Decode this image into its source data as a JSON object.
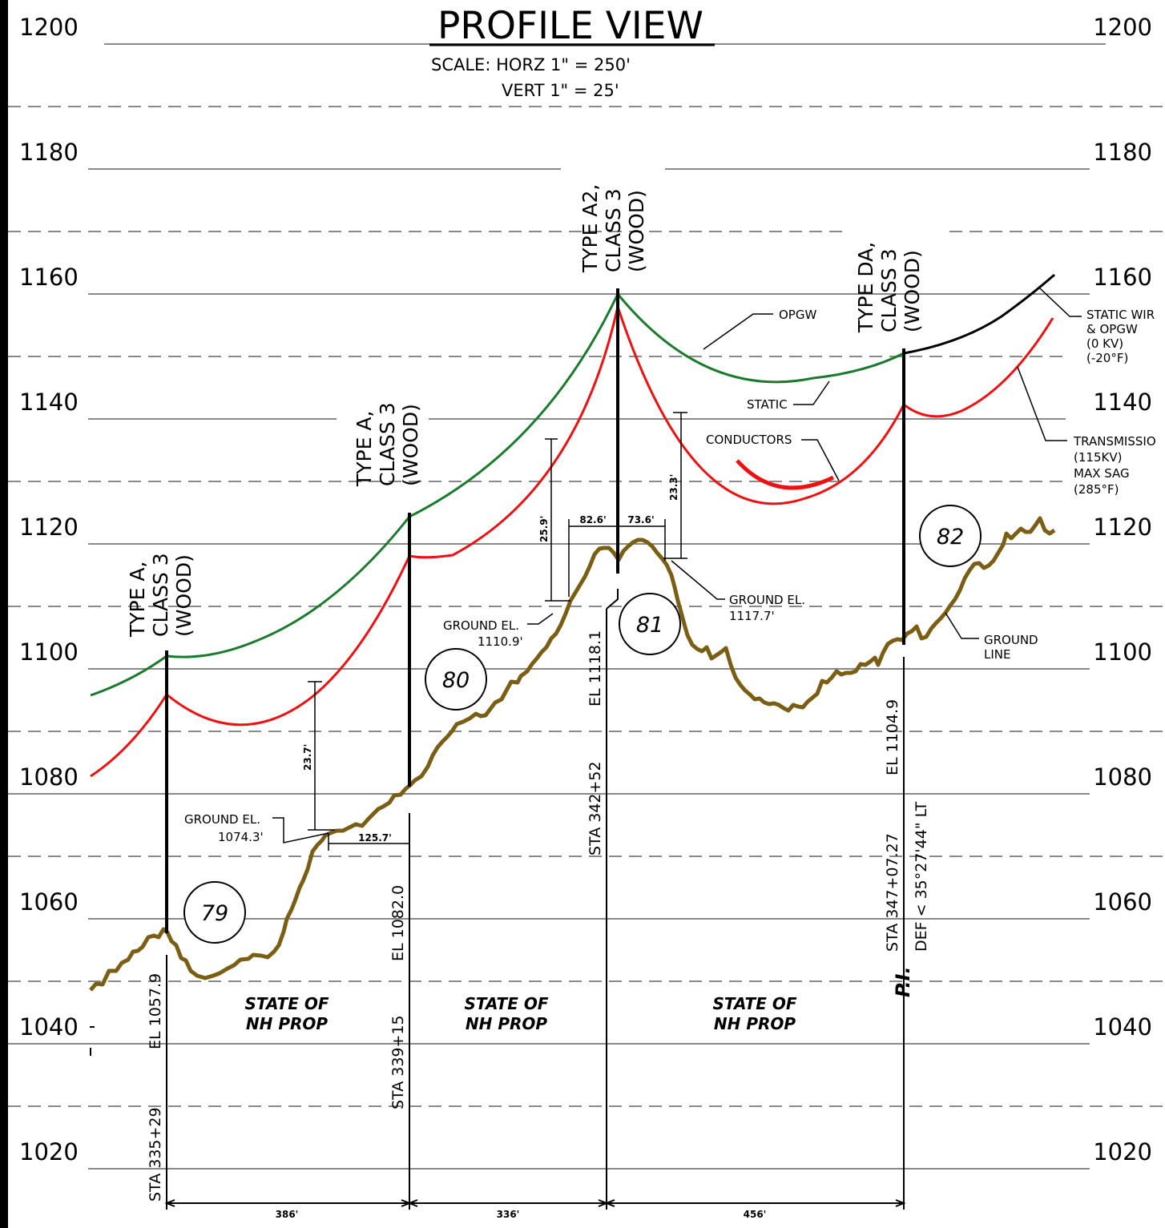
{
  "title": "PROFILE VIEW",
  "scale": {
    "horz": "SCALE:  HORZ  1\"  =  250'",
    "vert": "VERT  1\"  =  25'"
  },
  "elevations": [
    "1200",
    "1180",
    "1160",
    "1140",
    "1120",
    "1100",
    "1080",
    "1060",
    "1040",
    "1020"
  ],
  "poles": [
    {
      "number": "79",
      "type": [
        "TYPE  A,",
        "CLASS  3",
        "(WOOD)"
      ],
      "station": "STA  335+29",
      "elevation": "EL  1057.9"
    },
    {
      "number": "80",
      "type": [
        "TYPE  A,",
        "CLASS  3",
        "(WOOD)"
      ],
      "station": "STA  339+15",
      "elevation": "EL  1082.0"
    },
    {
      "number": "81",
      "type": [
        "TYPE  A2,",
        "CLASS  3",
        "(WOOD)"
      ],
      "station": "STA  342+52",
      "elevation": "EL  1118.1"
    },
    {
      "number": "82",
      "type": [
        "TYPE  DA,",
        "CLASS  3",
        "(WOOD)"
      ],
      "station": "STA  347+07.27",
      "elevation": "EL  1104.9",
      "deflection": "DEF  <  35°27'44\"  LT",
      "pi": "P.I."
    }
  ],
  "wires": {
    "opgw": "OPGW",
    "static": "STATIC",
    "conductors": "CONDUCTORS",
    "static_note": [
      "STATIC  WIR",
      "& OPGW",
      "(0  KV)",
      "(-20°F)"
    ],
    "transmission_note": [
      "TRANSMISSIO",
      "(115KV)",
      "MAX  SAG",
      "(285°F)"
    ]
  },
  "ground": {
    "ground_line": [
      "GROUND",
      "LINE"
    ],
    "g1": [
      "GROUND  EL.",
      "1074.3'"
    ],
    "g2": [
      "GROUND  EL.",
      "1110.9'"
    ],
    "g3": [
      "GROUND  EL.",
      "1117.7'"
    ]
  },
  "clearances": [
    "23.7'",
    "25.9'",
    "23.3'"
  ],
  "offsets": [
    "125.7'",
    "82.6'",
    "73.6'"
  ],
  "spans": [
    "386'",
    "336'",
    "456'"
  ],
  "property": [
    [
      "STATE  OF",
      "NH  PROP"
    ],
    [
      "STATE  OF",
      "NH  PROP"
    ],
    [
      "STATE  OF",
      "NH  PROP"
    ]
  ],
  "colors": {
    "opgw": "#1a7a2e",
    "conductor": "#ee1111",
    "ground": "#7a5e14",
    "static_ext": "#000000"
  }
}
